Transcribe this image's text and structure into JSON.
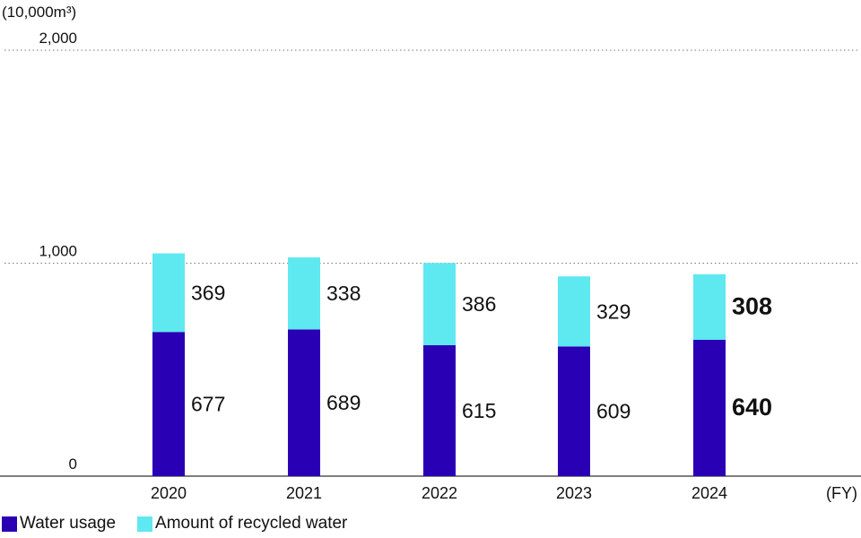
{
  "chart_data": {
    "type": "bar",
    "stacked": true,
    "unit": "(10,000m³)",
    "x_unit": "(FY)",
    "categories": [
      "2020",
      "2021",
      "2022",
      "2023",
      "2024"
    ],
    "ylim": [
      0,
      2000
    ],
    "yticks": [
      "0",
      "1,000",
      "2,000"
    ],
    "ytick_values": [
      0,
      1000,
      2000
    ],
    "grid": "dotted",
    "legend_position": "bottom-left",
    "highlight_category": "2024",
    "series": [
      {
        "name": "Water usage",
        "values": [
          677,
          689,
          615,
          609,
          640
        ],
        "color": "#2a00b5"
      },
      {
        "name": "Amount of recycled water",
        "values": [
          369,
          338,
          386,
          329,
          308
        ],
        "color": "#5ee8f0"
      }
    ]
  }
}
